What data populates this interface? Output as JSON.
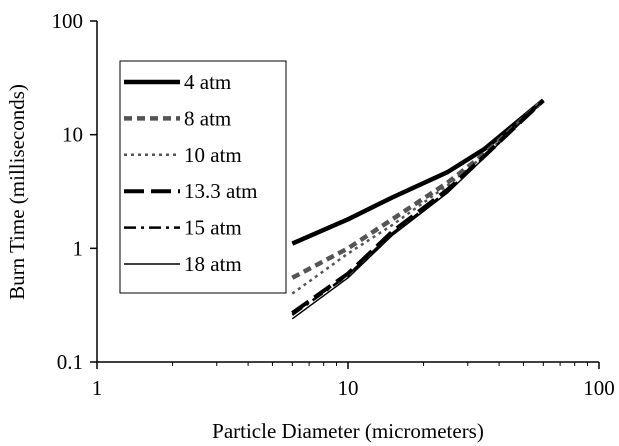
{
  "chart_data": {
    "type": "line",
    "title": "",
    "xlabel": "Particle Diameter (micrometers)",
    "ylabel": "Burn Time (milliseconds)",
    "x_scale": "log",
    "y_scale": "log",
    "xlim": [
      1,
      100
    ],
    "ylim": [
      0.1,
      100
    ],
    "x_ticks": [
      1,
      10,
      100
    ],
    "x_tick_labels": [
      "1",
      "10",
      "100"
    ],
    "y_ticks": [
      0.1,
      1,
      10,
      100
    ],
    "y_tick_labels": [
      "0.1",
      "1",
      "10",
      "100"
    ],
    "grid": false,
    "legend_position": "top-left",
    "series": [
      {
        "name": "4 atm",
        "style": "solid-thick",
        "color": "#000000",
        "x": [
          6,
          10,
          15,
          25,
          35,
          60
        ],
        "y": [
          1.1,
          1.8,
          2.8,
          4.7,
          7.5,
          20
        ]
      },
      {
        "name": "8 atm",
        "style": "dash",
        "color": "#555555",
        "x": [
          6,
          10,
          15,
          25,
          35,
          60
        ],
        "y": [
          0.55,
          1.0,
          1.8,
          3.8,
          6.8,
          20
        ]
      },
      {
        "name": "10 atm",
        "style": "dot",
        "color": "#555555",
        "x": [
          6,
          10,
          15,
          25,
          35,
          60
        ],
        "y": [
          0.4,
          0.9,
          1.6,
          3.6,
          6.6,
          20
        ]
      },
      {
        "name": "13.3 atm",
        "style": "long-dash",
        "color": "#000000",
        "x": [
          6,
          10,
          15,
          25,
          35,
          60
        ],
        "y": [
          0.27,
          0.6,
          1.4,
          3.3,
          6.5,
          20
        ]
      },
      {
        "name": "15 atm",
        "style": "dash-dot",
        "color": "#000000",
        "x": [
          6,
          10,
          15,
          25,
          35,
          60
        ],
        "y": [
          0.26,
          0.58,
          1.35,
          3.2,
          6.4,
          20
        ]
      },
      {
        "name": "18 atm",
        "style": "solid-thin",
        "color": "#000000",
        "x": [
          6,
          10,
          15,
          25,
          35,
          60
        ],
        "y": [
          0.24,
          0.55,
          1.3,
          3.1,
          6.3,
          20
        ]
      }
    ]
  }
}
